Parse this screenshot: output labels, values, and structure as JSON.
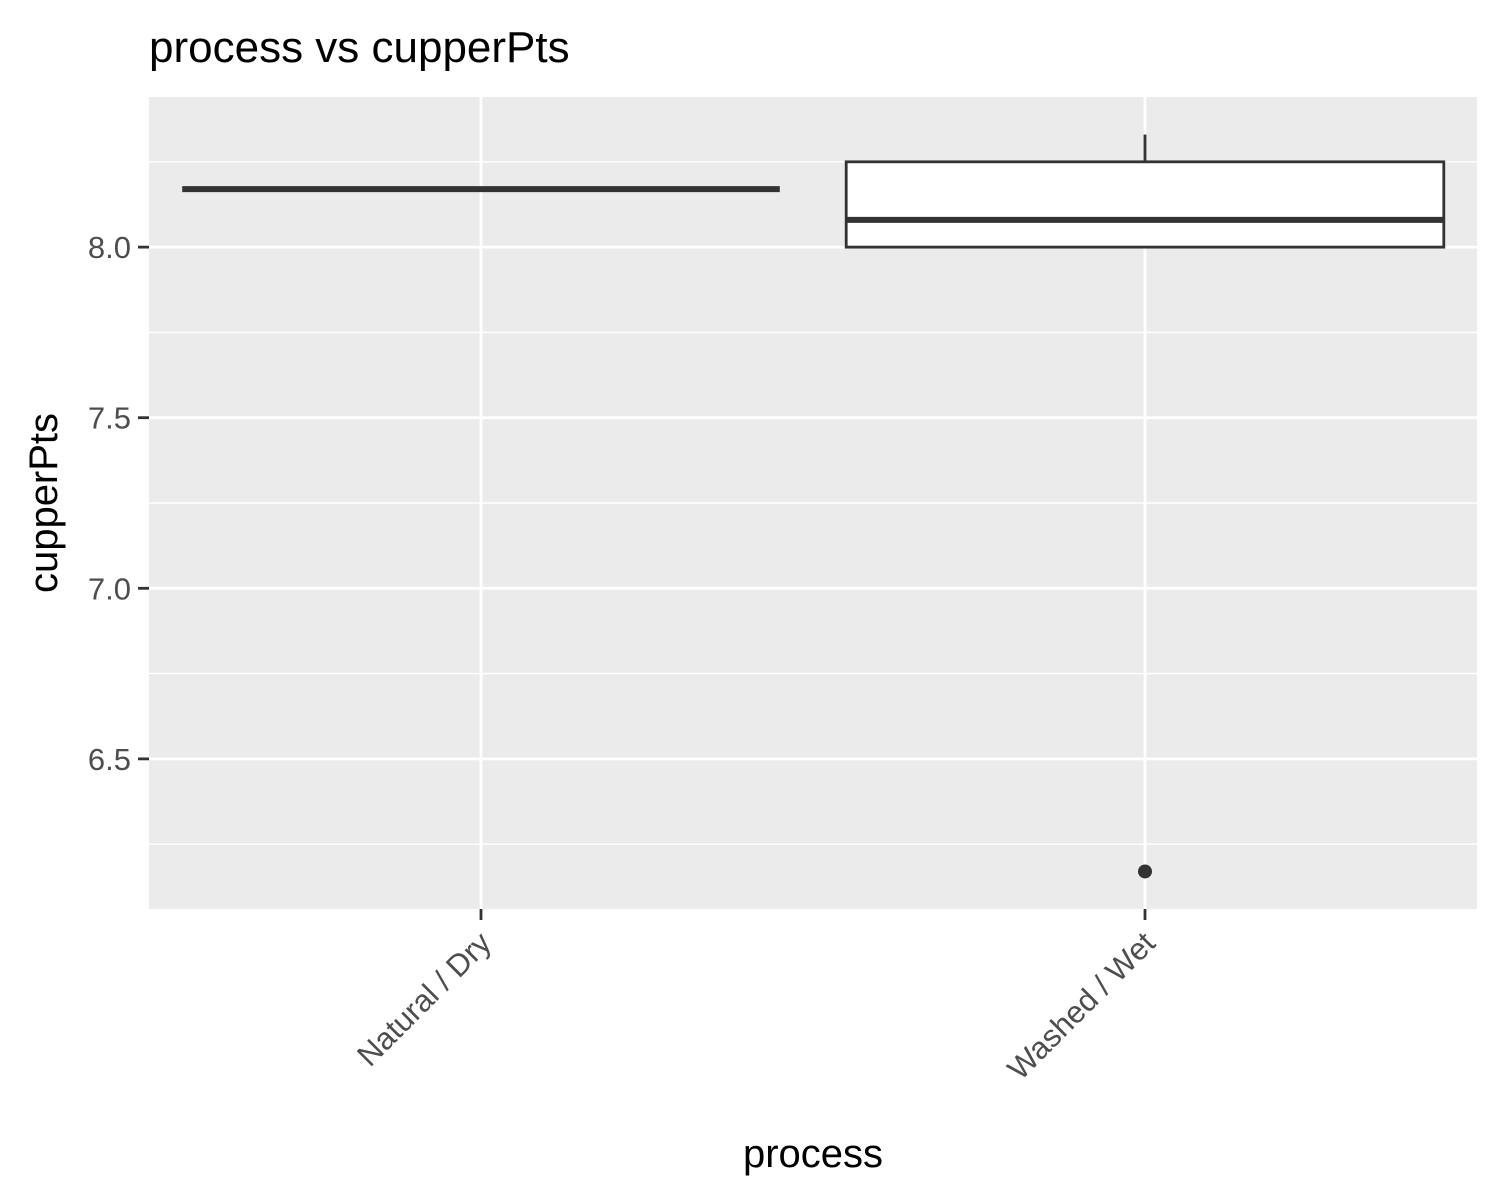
{
  "chart_data": {
    "type": "box",
    "title": "process vs cupperPts",
    "xlabel": "process",
    "ylabel": "cupperPts",
    "categories": [
      "Natural / Dry",
      "Washed / Wet"
    ],
    "boxes": [
      {
        "category": "Natural / Dry",
        "min": 8.17,
        "q1": 8.17,
        "median": 8.17,
        "q3": 8.17,
        "max": 8.17,
        "outliers": []
      },
      {
        "category": "Washed / Wet",
        "min": 8.0,
        "q1": 8.0,
        "median": 8.08,
        "q3": 8.25,
        "max": 8.33,
        "outliers": [
          6.17
        ]
      }
    ],
    "ylim": [
      6.06,
      8.44
    ],
    "yticks": [
      6.5,
      7.0,
      7.5,
      8.0
    ],
    "ytick_labels": [
      "6.5",
      "7.0",
      "7.5",
      "8.0"
    ],
    "grid": true,
    "colors": {
      "panel": "#ebebeb",
      "grid": "#ffffff",
      "box_fill": "#ffffff",
      "box_stroke": "#333333",
      "tick_text": "#4d4d4d",
      "text": "#000000"
    }
  }
}
